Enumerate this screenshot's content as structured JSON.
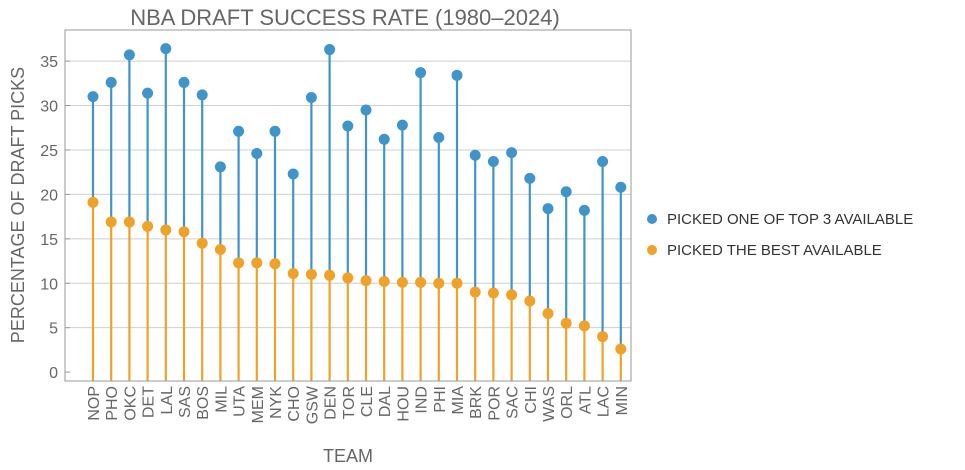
{
  "chart_data": {
    "type": "scatter",
    "title": "NBA DRAFT SUCCESS RATE (1980–2024)",
    "xlabel": "TEAM",
    "ylabel": "PERCENTAGE OF DRAFT PICKS",
    "ylim": [
      -1,
      38.5
    ],
    "yticks": [
      0,
      5,
      10,
      15,
      20,
      25,
      30,
      35
    ],
    "grid": true,
    "legend_position": "right",
    "categories": [
      "NOP",
      "PHO",
      "OKC",
      "DET",
      "LAL",
      "SAS",
      "BOS",
      "MIL",
      "UTA",
      "MEM",
      "NYK",
      "CHO",
      "GSW",
      "DEN",
      "TOR",
      "CLE",
      "DAL",
      "HOU",
      "IND",
      "PHI",
      "MIA",
      "BRK",
      "POR",
      "SAC",
      "CHI",
      "WAS",
      "ORL",
      "ATL",
      "LAC",
      "MIN"
    ],
    "series": [
      {
        "name": "PICKED ONE OF TOP 3 AVAILABLE",
        "color": "#3f95c9",
        "values": [
          31.0,
          32.6,
          35.7,
          31.4,
          36.4,
          32.6,
          31.2,
          23.1,
          27.1,
          24.6,
          27.1,
          22.3,
          30.9,
          36.3,
          27.7,
          29.5,
          26.2,
          27.8,
          33.7,
          26.4,
          33.4,
          24.4,
          23.7,
          24.7,
          21.8,
          18.4,
          20.3,
          18.2,
          23.7,
          20.8
        ]
      },
      {
        "name": "PICKED THE BEST AVAILABLE",
        "color": "#f0a127",
        "values": [
          19.1,
          16.9,
          16.9,
          16.4,
          16.0,
          15.8,
          14.5,
          13.8,
          12.3,
          12.3,
          12.2,
          11.1,
          11.0,
          10.9,
          10.6,
          10.3,
          10.2,
          10.1,
          10.1,
          10.0,
          10.0,
          9.0,
          8.9,
          8.7,
          8.0,
          6.6,
          5.5,
          5.2,
          4.0,
          2.6
        ]
      }
    ]
  }
}
